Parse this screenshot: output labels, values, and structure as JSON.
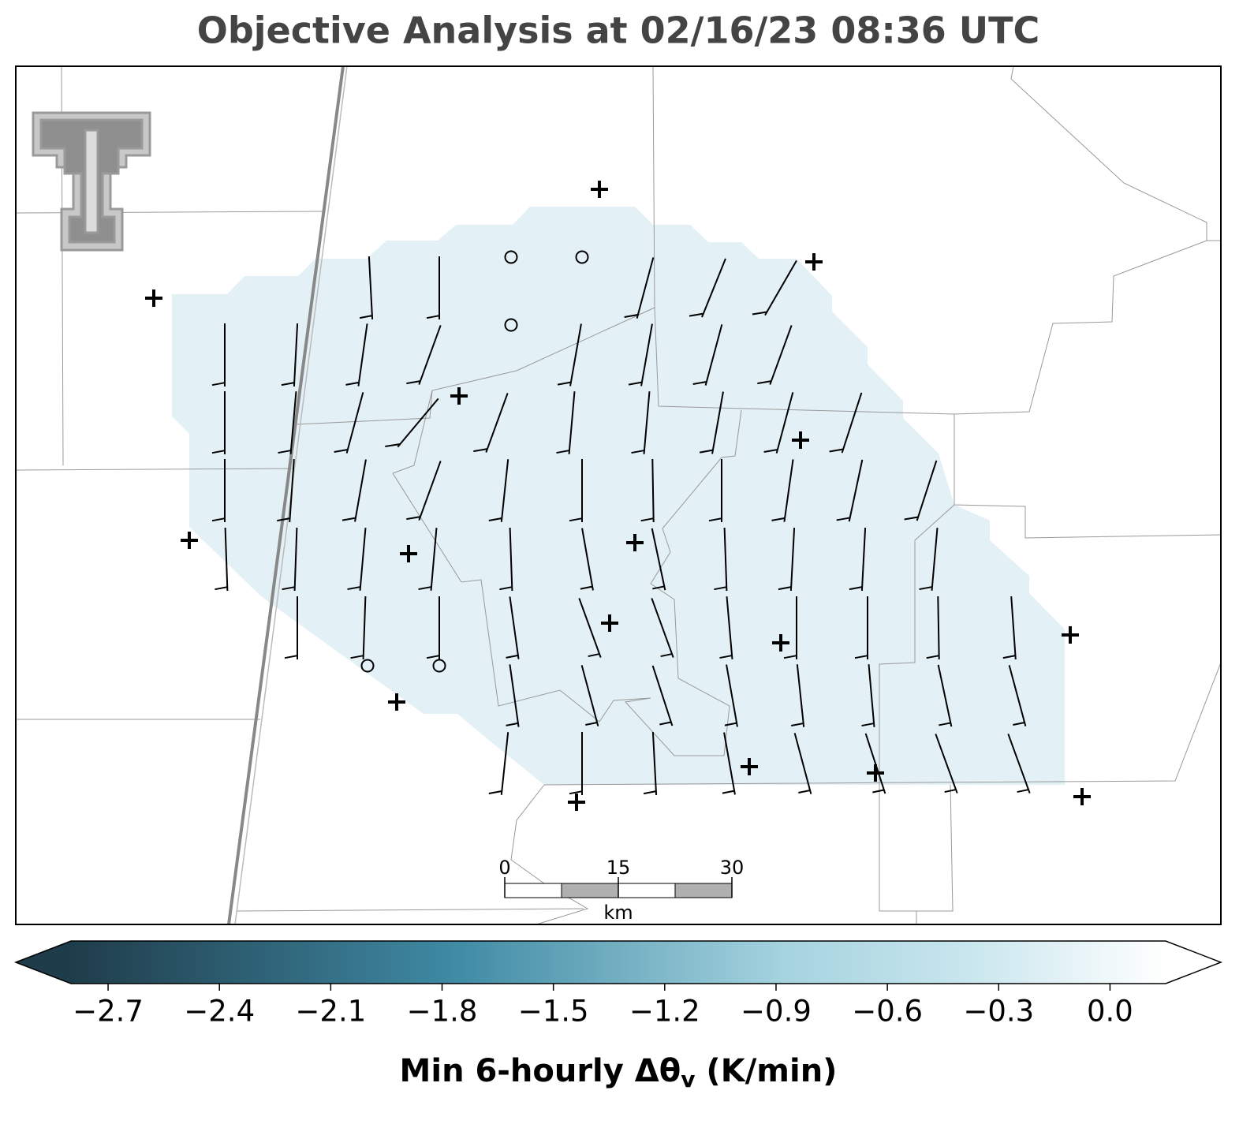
{
  "chart_data": {
    "type": "map",
    "title": "Objective Analysis at 02/16/23 08:36 UTC",
    "colorbar": {
      "label": {
        "text": "Min 6-hourly Δθ",
        "subscript": "v",
        "suffix": " (K/min)"
      },
      "lim": [
        -2.8,
        0.15
      ],
      "extend": "both",
      "ticks": [
        {
          "value": -2.7,
          "label": "−2.7"
        },
        {
          "value": -2.4,
          "label": "−2.4"
        },
        {
          "value": -2.1,
          "label": "−2.1"
        },
        {
          "value": -1.8,
          "label": "−1.8"
        },
        {
          "value": -1.5,
          "label": "−1.5"
        },
        {
          "value": -1.2,
          "label": "−1.2"
        },
        {
          "value": -0.9,
          "label": "−0.9"
        },
        {
          "value": -0.6,
          "label": "−0.6"
        },
        {
          "value": -0.3,
          "label": "−0.3"
        },
        {
          "value": 0.0,
          "label": "0.0"
        }
      ]
    },
    "scale_bar": {
      "ticks": [
        0,
        15,
        30
      ],
      "unit": "km"
    }
  }
}
